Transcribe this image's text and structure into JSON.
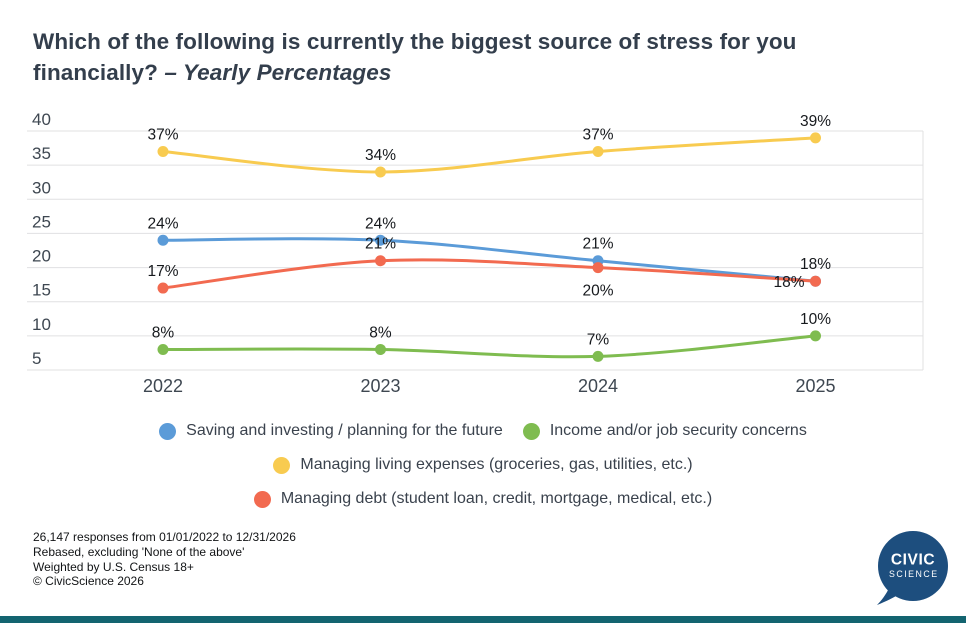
{
  "title": {
    "line1": "Which of the following is currently the biggest source of stress for you",
    "line2_plain": "financially?",
    "line2_italic": "– Yearly Percentages"
  },
  "chart_data": {
    "type": "line",
    "x_categories": [
      "2022",
      "2023",
      "2024",
      "2025"
    ],
    "ylim": [
      5,
      40
    ],
    "yticks": [
      5,
      10,
      15,
      20,
      25,
      30,
      35,
      40
    ],
    "grid": "horizontal",
    "legend_position": "bottom",
    "series": [
      {
        "name": "Managing living expenses (groceries, gas, utilities, etc.)",
        "color": "#F8CB50",
        "values": [
          37,
          34,
          37,
          39
        ],
        "labels": [
          "37%",
          "34%",
          "37%",
          "39%"
        ]
      },
      {
        "name": "Saving and investing / planning for the future",
        "color": "#5B9BD8",
        "values": [
          24,
          24,
          21,
          18
        ],
        "labels": [
          "24%",
          "24%",
          "21%",
          "18%"
        ]
      },
      {
        "name": "Managing debt (student loan, credit, mortgage, medical, etc.)",
        "color": "#F26A50",
        "values": [
          17,
          21,
          20,
          18
        ],
        "labels": [
          "17%",
          "21%",
          "20%",
          "18%"
        ]
      },
      {
        "name": "Income and/or job security concerns",
        "color": "#7FBC50",
        "values": [
          8,
          8,
          7,
          10
        ],
        "labels": [
          "8%",
          "8%",
          "7%",
          "10%"
        ]
      }
    ],
    "label_overrides": {
      "2-2": {
        "dy": 28
      },
      "2-3": {
        "dx": -11,
        "dy": 6,
        "anchor": "end"
      }
    }
  },
  "legend": {
    "rows": [
      [
        {
          "label": "Saving and investing / planning for the future",
          "color": "#5B9BD8"
        },
        {
          "label": "Income and/or job security concerns",
          "color": "#7FBC50"
        }
      ],
      [
        {
          "label": "Managing living expenses (groceries, gas, utilities, etc.)",
          "color": "#F8CB50"
        }
      ],
      [
        {
          "label": "Managing debt (student loan, credit, mortgage, medical, etc.)",
          "color": "#F26A50"
        }
      ]
    ]
  },
  "footer": {
    "lines": [
      "26,147 responses from 01/01/2022 to 12/31/2026",
      "Rebased, excluding 'None of the above'",
      "Weighted by U.S. Census 18+",
      "© CivicScience 2026"
    ]
  },
  "logo": {
    "line1": "CIVIC",
    "line2": "SCIENCE"
  },
  "colors": {
    "title": "#333E4C",
    "axis_text": "#3E4751",
    "grid": "#E0E0E2",
    "data_label": "#16191D",
    "legend_text": "#3A424D",
    "logo_bg": "#1D4E7E",
    "bottom_bar": "#136470",
    "background": "#FFFFFF"
  }
}
